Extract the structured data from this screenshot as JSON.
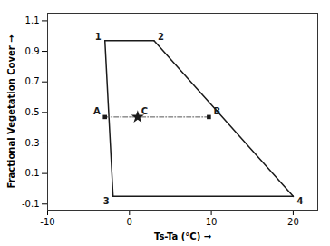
{
  "chart_data": {
    "type": "line",
    "xlabel": "Ts-Ta (°C)",
    "ylabel": "Fractional Vegetation Cover",
    "xlim": [
      -10,
      23
    ],
    "ylim": [
      -0.14,
      1.15
    ],
    "xticks": [
      -10,
      0,
      10,
      20
    ],
    "yticks": [
      -0.1,
      0.1,
      0.3,
      0.5,
      0.7,
      0.9,
      1.1
    ],
    "grid": false,
    "series": [
      {
        "x": [
          -3,
          3
        ],
        "values": [
          0.97,
          0.97
        ],
        "color": "#1a1a1a",
        "line_style": "solid"
      },
      {
        "x": [
          -3,
          -2
        ],
        "values": [
          0.97,
          -0.05
        ],
        "color": "#1a1a1a",
        "line_style": "solid"
      },
      {
        "x": [
          -2,
          20
        ],
        "values": [
          -0.05,
          -0.05
        ],
        "color": "#1a1a1a",
        "line_style": "solid"
      },
      {
        "x": [
          3,
          20
        ],
        "values": [
          0.97,
          -0.05
        ],
        "color": "#1a1a1a",
        "line_style": "solid"
      },
      {
        "x": [
          -3,
          9.7
        ],
        "values": [
          0.47,
          0.47
        ],
        "color": "#555555",
        "line_style": "dashdot"
      },
      {
        "type": "scatter",
        "x": [
          1
        ],
        "values": [
          0.47
        ],
        "color": "#1a1a1a",
        "marker": "star"
      },
      {
        "type": "scatter",
        "x": [
          -3
        ],
        "values": [
          0.47
        ],
        "color": "#1a1a1a",
        "marker": "square"
      },
      {
        "type": "scatter",
        "x": [
          9.7
        ],
        "values": [
          0.47
        ],
        "color": "#1a1a1a",
        "marker": "square"
      }
    ],
    "annotations": [
      {
        "text": "1",
        "x": -3,
        "y": 0.97,
        "color": "#1a1a1a"
      },
      {
        "text": "2",
        "x": 3,
        "y": 0.97,
        "color": "#1a1a1a"
      },
      {
        "text": "3",
        "x": -2,
        "y": -0.05,
        "color": "#1a1a1a"
      },
      {
        "text": "4",
        "x": 20,
        "y": -0.05,
        "color": "#1a1a1a"
      },
      {
        "text": "A",
        "x": -3,
        "y": 0.47,
        "color": "#1a1a1a"
      },
      {
        "text": "B",
        "x": 9.7,
        "y": 0.47,
        "color": "#1a1a1a"
      },
      {
        "text": "C",
        "x": 1,
        "y": 0.47,
        "color": "#1a1a1a"
      }
    ]
  }
}
